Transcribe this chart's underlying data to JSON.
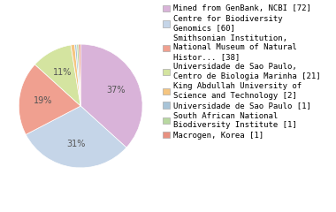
{
  "labels": [
    "Mined from GenBank, NCBI [72]",
    "Centre for Biodiversity\nGenomics [60]",
    "Smithsonian Institution,\nNational Museum of Natural\nHistor... [38]",
    "Universidade de Sao Paulo,\nCentro de Biologia Marinha [21]",
    "King Abdullah University of\nScience and Technology [2]",
    "Universidade de Sao Paulo [1]",
    "South African National\nBiodiversity Institute [1]",
    "Macrogen, Korea [1]"
  ],
  "values": [
    72,
    60,
    38,
    21,
    2,
    1,
    1,
    1
  ],
  "colors": [
    "#d9b3d9",
    "#c5d5e8",
    "#f0a090",
    "#d4e4a0",
    "#f5c580",
    "#a8c4d8",
    "#b8d8a0",
    "#e89080"
  ],
  "background_color": "#ffffff",
  "text_color": "#555555",
  "pct_threshold": 9,
  "pie_fontsize": 7,
  "legend_fontsize": 6.5
}
